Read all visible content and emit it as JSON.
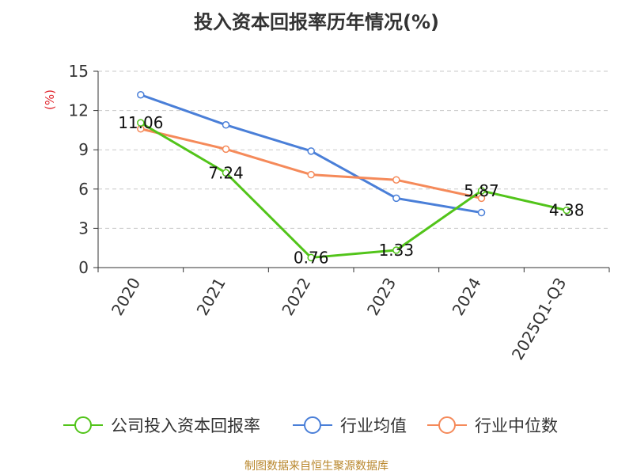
{
  "chart_data": {
    "type": "line",
    "title": "投入资本回报率历年情况(%)",
    "ylabel": "(%)",
    "xlabel": "",
    "ylim": [
      0,
      15
    ],
    "yticks": [
      "0",
      "3",
      "6",
      "9",
      "12",
      "15"
    ],
    "categories": [
      "2020",
      "2021",
      "2022",
      "2023",
      "2024",
      "2025Q1-Q3"
    ],
    "grid": true,
    "legend_position": "bottom",
    "series": [
      {
        "name": "公司投入资本回报率",
        "color": "#52c41a",
        "values": [
          11.06,
          7.24,
          0.76,
          1.33,
          5.87,
          4.38
        ],
        "labels": [
          "11.06",
          "7.24",
          "0.76",
          "1.33",
          "5.87",
          "4.38"
        ]
      },
      {
        "name": "行业均值",
        "color": "#4a7fd8",
        "values": [
          13.2,
          10.9,
          8.9,
          5.3,
          4.2,
          null
        ]
      },
      {
        "name": "行业中位数",
        "color": "#f58a5a",
        "values": [
          10.6,
          9.05,
          7.1,
          6.7,
          5.3,
          null
        ]
      }
    ]
  },
  "footer": {
    "source": "制图数据来自恒生聚源数据库"
  }
}
